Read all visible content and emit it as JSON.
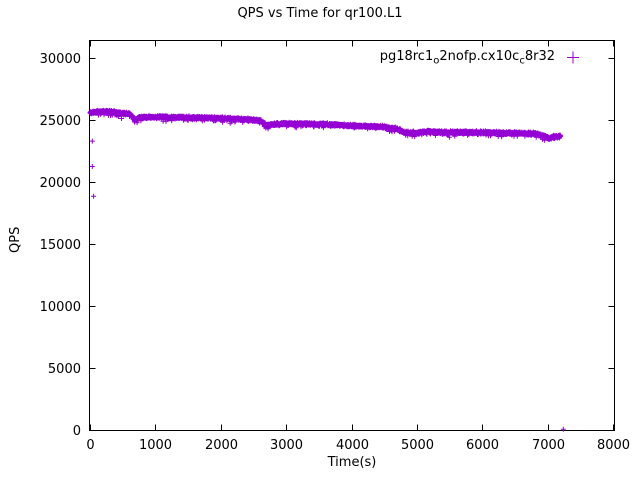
{
  "chart_data": {
    "type": "scatter",
    "title": "QPS vs Time for qr100.L1",
    "xlabel": "Time(s)",
    "ylabel": "QPS",
    "xlim": [
      0,
      8000
    ],
    "ylim": [
      0,
      30000
    ],
    "xticks": [
      0,
      1000,
      2000,
      3000,
      4000,
      5000,
      6000,
      7000,
      8000
    ],
    "yticks": [
      0,
      5000,
      10000,
      15000,
      20000,
      25000,
      30000
    ],
    "grid": false,
    "legend_position": "top-right-inside",
    "series": [
      {
        "name": "pg18rc1_o2nofp.cx10c_c8r32",
        "marker": "+",
        "color": "#9400d3",
        "t_start": 0,
        "t_end": 7200,
        "sample_interval_s": 2,
        "noise_qps": 110,
        "trend_points": [
          [
            0,
            25600
          ],
          [
            150,
            25680
          ],
          [
            300,
            25650
          ],
          [
            500,
            25550
          ],
          [
            620,
            25480
          ],
          [
            680,
            25050
          ],
          [
            750,
            25200
          ],
          [
            900,
            25250
          ],
          [
            1200,
            25230
          ],
          [
            1500,
            25200
          ],
          [
            1800,
            25170
          ],
          [
            2100,
            25120
          ],
          [
            2400,
            25050
          ],
          [
            2600,
            24950
          ],
          [
            2700,
            24550
          ],
          [
            2800,
            24650
          ],
          [
            3000,
            24720
          ],
          [
            3300,
            24680
          ],
          [
            3600,
            24640
          ],
          [
            3900,
            24570
          ],
          [
            4200,
            24500
          ],
          [
            4500,
            24440
          ],
          [
            4700,
            24280
          ],
          [
            4820,
            23980
          ],
          [
            5000,
            23960
          ],
          [
            5150,
            24060
          ],
          [
            5400,
            24010
          ],
          [
            5700,
            24000
          ],
          [
            6000,
            23990
          ],
          [
            6300,
            23960
          ],
          [
            6600,
            23930
          ],
          [
            6800,
            23890
          ],
          [
            6950,
            23720
          ],
          [
            7020,
            23520
          ],
          [
            7080,
            23620
          ],
          [
            7200,
            23700
          ]
        ],
        "stray_points": [
          [
            35,
            23300
          ],
          [
            35,
            21250
          ],
          [
            55,
            18850
          ],
          [
            7240,
            60
          ]
        ]
      }
    ]
  },
  "legend": {
    "label_plain": "pg18rc1_o2nofp.cx10c_c8r32",
    "label_parts": [
      {
        "t": "pg18rc1"
      },
      {
        "s": "o"
      },
      {
        "t": "2nofp.cx10c"
      },
      {
        "s": "c"
      },
      {
        "t": "8r32"
      }
    ],
    "marker": "+"
  },
  "colors": {
    "series": "#9400d3",
    "axis": "#000000",
    "background": "#ffffff"
  }
}
